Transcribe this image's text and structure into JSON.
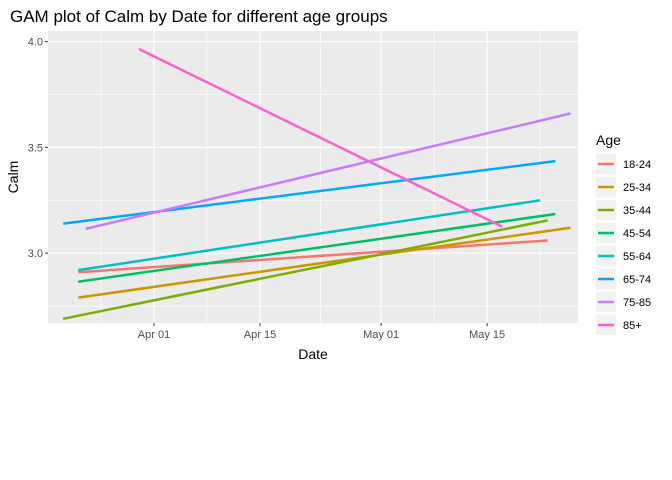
{
  "chart_data": {
    "type": "line",
    "title": "GAM plot of Calm by Date for different age groups",
    "xlabel": "Date",
    "ylabel": "Calm",
    "x_axis": {
      "type": "date",
      "range": [
        "2020-03-18",
        "2020-05-27"
      ],
      "ticks": [
        {
          "date": "2020-04-01",
          "label": "Apr 01"
        },
        {
          "date": "2020-04-15",
          "label": "Apr 15"
        },
        {
          "date": "2020-05-01",
          "label": "May 01"
        },
        {
          "date": "2020-05-15",
          "label": "May 15"
        }
      ]
    },
    "y_axis": {
      "range": [
        2.67,
        4.05
      ],
      "ticks": [
        3.0,
        3.5,
        4.0
      ],
      "tick_labels": [
        "3.0",
        "3.5",
        "4.0"
      ]
    },
    "grid": true,
    "legend": {
      "title": "Age",
      "position": "right"
    },
    "series": [
      {
        "name": "18-24",
        "color": "#F8766D",
        "x": [
          "2020-03-22",
          "2020-05-23"
        ],
        "y": [
          2.91,
          3.06
        ]
      },
      {
        "name": "25-34",
        "color": "#CD9600",
        "x": [
          "2020-03-22",
          "2020-05-26"
        ],
        "y": [
          2.79,
          3.12
        ]
      },
      {
        "name": "35-44",
        "color": "#7CAE00",
        "x": [
          "2020-03-20",
          "2020-05-23"
        ],
        "y": [
          2.69,
          3.155
        ]
      },
      {
        "name": "45-54",
        "color": "#00BE67",
        "x": [
          "2020-03-22",
          "2020-05-24"
        ],
        "y": [
          2.865,
          3.185
        ]
      },
      {
        "name": "55-64",
        "color": "#00BFC4",
        "x": [
          "2020-03-22",
          "2020-05-22"
        ],
        "y": [
          2.92,
          3.25
        ]
      },
      {
        "name": "65-74",
        "color": "#00A9FF",
        "x": [
          "2020-03-20",
          "2020-05-24"
        ],
        "y": [
          3.14,
          3.435
        ]
      },
      {
        "name": "75-85",
        "color": "#C77CFF",
        "x": [
          "2020-03-23",
          "2020-05-26"
        ],
        "y": [
          3.115,
          3.66
        ]
      },
      {
        "name": "85+",
        "color": "#FF61CC",
        "x": [
          "2020-03-30",
          "2020-05-17"
        ],
        "y": [
          3.965,
          3.125
        ]
      }
    ]
  }
}
